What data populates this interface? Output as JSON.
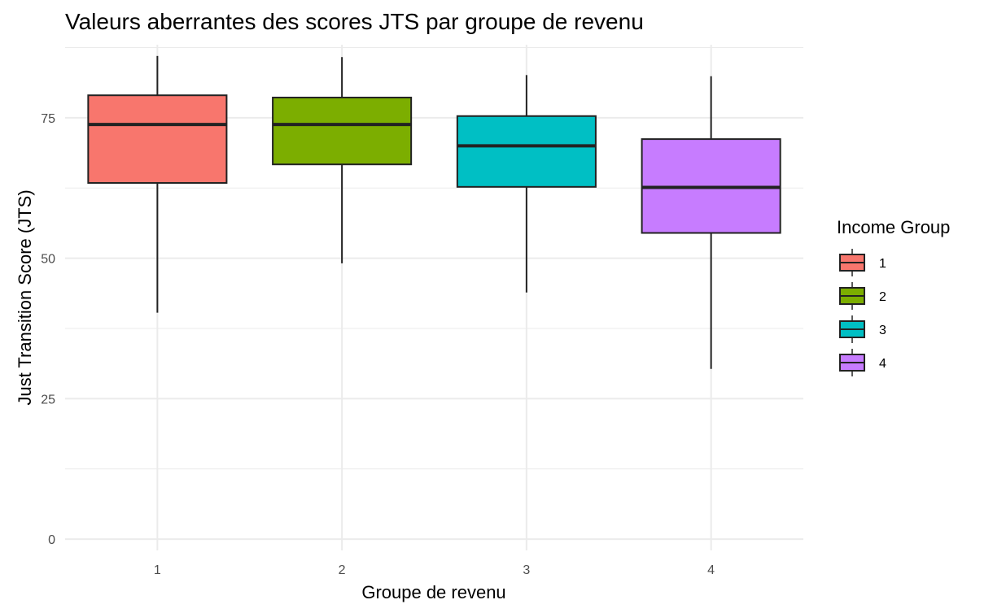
{
  "chart_data": {
    "type": "boxplot",
    "title": "Valeurs aberrantes des scores JTS par groupe de revenu",
    "xlabel": "Groupe de revenu",
    "ylabel": "Just Transition Score (JTS)",
    "categories": [
      "1",
      "2",
      "3",
      "4"
    ],
    "ylim": [
      -2,
      88
    ],
    "yticks": [
      0,
      25,
      50,
      75
    ],
    "grid": true,
    "legend": {
      "title": "Income Group",
      "position": "right",
      "entries": [
        "1",
        "2",
        "3",
        "4"
      ]
    },
    "colors": [
      "#F8766D",
      "#7CAE00",
      "#00BFC4",
      "#C77CFF"
    ],
    "boxes": [
      {
        "group": "1",
        "min": 40.3,
        "q1": 63.4,
        "median": 73.8,
        "q3": 79.0,
        "max": 86.0
      },
      {
        "group": "2",
        "min": 49.1,
        "q1": 66.7,
        "median": 73.8,
        "q3": 78.6,
        "max": 85.8
      },
      {
        "group": "3",
        "min": 43.9,
        "q1": 62.7,
        "median": 70.0,
        "q3": 75.3,
        "max": 82.6
      },
      {
        "group": "4",
        "min": 30.3,
        "q1": 54.5,
        "median": 62.6,
        "q3": 71.2,
        "max": 82.4
      }
    ]
  }
}
